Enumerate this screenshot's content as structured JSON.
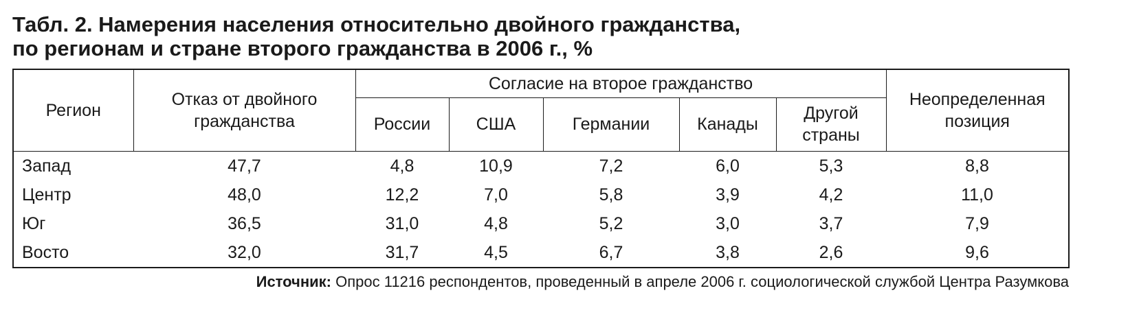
{
  "title": [
    "Табл. 2. Намерения населения относительно двойного гражданства,",
    "по регионам и стране второго гражданства в 2006 г., %"
  ],
  "table": {
    "headers": {
      "region": "Регион",
      "refusal": "Отказ от двойного гражданства",
      "consent": "Согласие на второе гражданство",
      "countries": [
        "России",
        "США",
        "Германии",
        "Канады",
        "Другой страны"
      ],
      "undecided": "Неопределенная позиция"
    },
    "rows": [
      [
        "Запад",
        "47,7",
        "4,8",
        "10,9",
        "7,2",
        "6,0",
        "5,3",
        "8,8"
      ],
      [
        "Центр",
        "48,0",
        "12,2",
        "7,0",
        "5,8",
        "3,9",
        "4,2",
        "11,0"
      ],
      [
        "Юг",
        "36,5",
        "31,0",
        "4,8",
        "5,2",
        "3,0",
        "3,7",
        "7,9"
      ],
      [
        "Восто",
        "32,0",
        "31,7",
        "4,5",
        "6,7",
        "3,8",
        "2,6",
        "9,6"
      ]
    ]
  },
  "source": {
    "label": "Источник:",
    "text": "Опрос 11216 респондентов, проведенный в апреле 2006 г. социологической службой Центра Разумкова"
  }
}
